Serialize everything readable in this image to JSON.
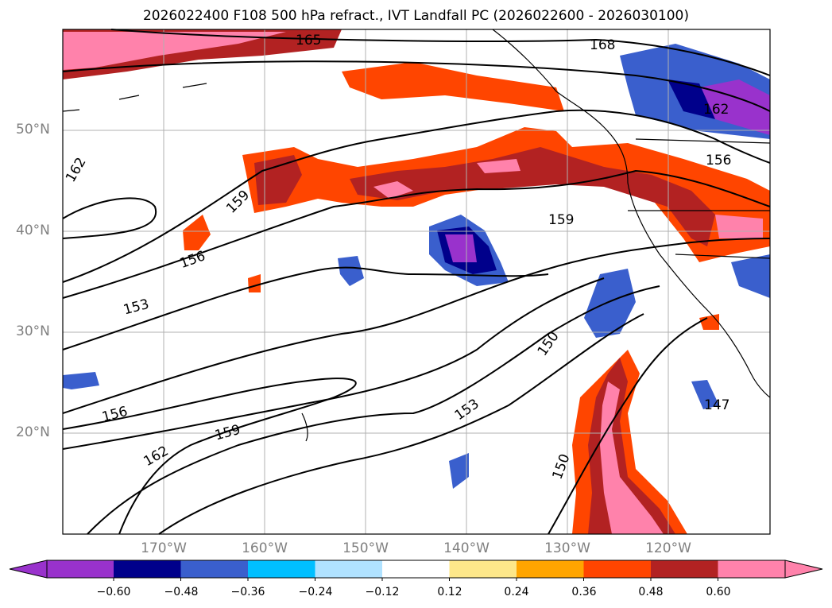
{
  "title": "2026022400 F108 500 hPa refract., IVT Landfall PC (2026022600 - 2026030100)",
  "map": {
    "lon_range": [
      -180,
      -110
    ],
    "lat_range": [
      10,
      60
    ],
    "lat_ticks": [
      "20°N",
      "30°N",
      "40°N",
      "50°N"
    ],
    "lon_ticks": [
      "170°W",
      "160°W",
      "150°W",
      "140°W",
      "130°W",
      "120°W"
    ],
    "grid": true,
    "contour_labels": [
      "165",
      "168",
      "162",
      "156",
      "159",
      "162",
      "159",
      "156",
      "153",
      "150",
      "153",
      "156",
      "159",
      "162",
      "150",
      "147"
    ]
  },
  "colorbar": {
    "tick_labels": [
      "−0.60",
      "−0.48",
      "−0.36",
      "−0.24",
      "−0.12",
      "0.12",
      "0.24",
      "0.36",
      "0.48",
      "0.60"
    ],
    "colors": [
      "#9932cc",
      "#00008b",
      "#3a5fcd",
      "#00bfff",
      "#b0e2ff",
      "#ffffff",
      "#fde78a",
      "#ffa500",
      "#ff4500",
      "#b22222",
      "#ff82ab"
    ],
    "extend": "both"
  }
}
